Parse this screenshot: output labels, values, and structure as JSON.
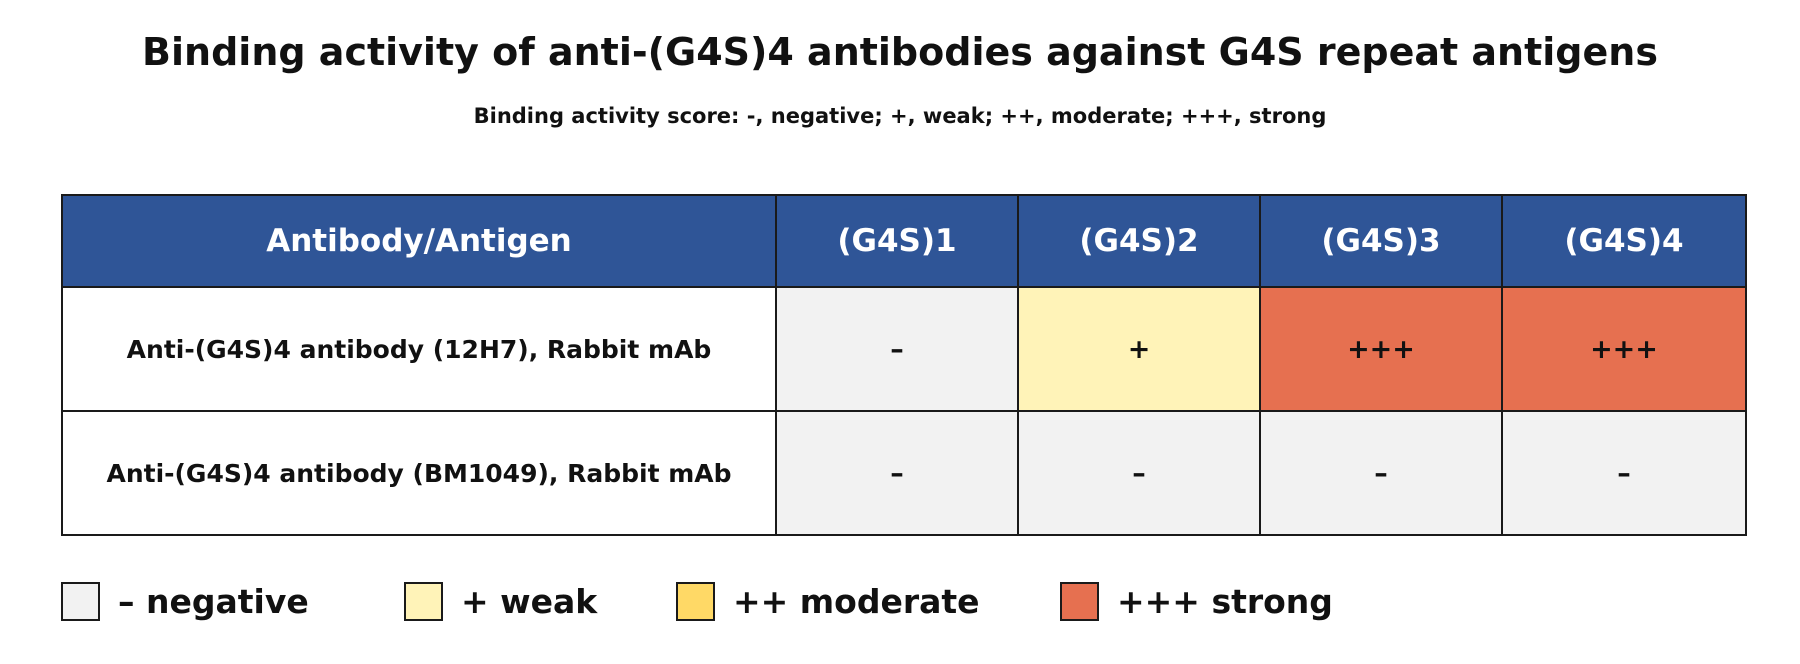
{
  "title": "Binding activity of anti-(G4S)4 antibodies against G4S repeat antigens",
  "subtitle": "Binding activity score: -, negative; +, weak; ++, moderate; +++, strong",
  "table": {
    "header": [
      "Antibody/Antigen",
      "(G4S)1",
      "(G4S)2",
      "(G4S)3",
      "(G4S)4"
    ],
    "rows": [
      {
        "antibody": "Anti-(G4S)4 antibody (12H7), Rabbit mAb",
        "scores": [
          "–",
          "+",
          "+++",
          "+++"
        ],
        "levels": [
          "negative",
          "weak",
          "strong",
          "strong"
        ]
      },
      {
        "antibody": "Anti-(G4S)4 antibody (BM1049), Rabbit mAb",
        "scores": [
          "–",
          "–",
          "–",
          "–"
        ],
        "levels": [
          "negative",
          "negative",
          "negative",
          "negative"
        ]
      }
    ]
  },
  "legend": [
    {
      "label": "– negative",
      "color": "#f2f2f2"
    },
    {
      "label": "+ weak",
      "color": "#fff3b8"
    },
    {
      "label": "++ moderate",
      "color": "#ffd966"
    },
    {
      "label": "+++ strong",
      "color": "#e67050"
    }
  ],
  "colors": {
    "header_bg": "#2f5597",
    "negative": "#f2f2f2",
    "weak": "#fff3b8",
    "moderate": "#ffd966",
    "strong": "#e67050"
  }
}
